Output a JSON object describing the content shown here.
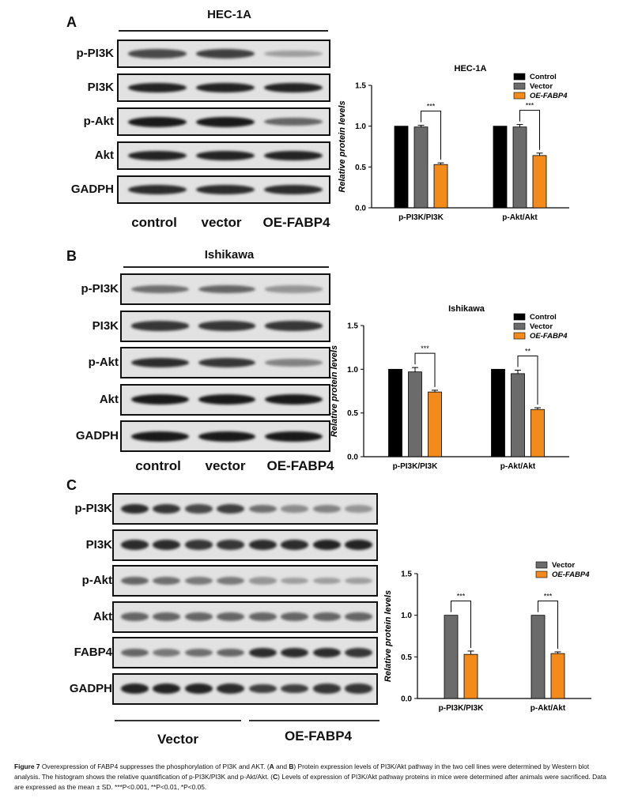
{
  "panel_a": {
    "letter": "A",
    "cell_line": "HEC-1A",
    "rows": [
      {
        "label": "p-PI3K",
        "intensity": [
          0.75,
          0.8,
          0.3
        ]
      },
      {
        "label": "PI3K",
        "intensity": [
          0.95,
          0.95,
          0.95
        ]
      },
      {
        "label": "p-Akt",
        "intensity": [
          1.0,
          1.0,
          0.6
        ]
      },
      {
        "label": "Akt",
        "intensity": [
          0.95,
          0.95,
          0.95
        ]
      },
      {
        "label": "GADPH",
        "intensity": [
          0.9,
          0.9,
          0.9
        ]
      }
    ],
    "lanes": [
      "control",
      "vector",
      "OE-FABP4"
    ]
  },
  "panel_b": {
    "letter": "B",
    "cell_line": "Ishikawa",
    "rows": [
      {
        "label": "p-PI3K",
        "intensity": [
          0.55,
          0.6,
          0.35
        ]
      },
      {
        "label": "PI3K",
        "intensity": [
          0.85,
          0.85,
          0.85
        ]
      },
      {
        "label": "p-Akt",
        "intensity": [
          0.9,
          0.85,
          0.45
        ]
      },
      {
        "label": "Akt",
        "intensity": [
          1.0,
          1.0,
          1.0
        ]
      },
      {
        "label": "GADPH",
        "intensity": [
          1.0,
          1.0,
          1.0
        ]
      }
    ],
    "lanes": [
      "control",
      "vector",
      "OE-FABP4"
    ]
  },
  "panel_c": {
    "letter": "C",
    "rows": [
      {
        "label": "p-PI3K",
        "intensity": [
          0.9,
          0.85,
          0.75,
          0.8,
          0.55,
          0.4,
          0.45,
          0.35
        ]
      },
      {
        "label": "PI3K",
        "intensity": [
          0.9,
          0.9,
          0.85,
          0.85,
          0.9,
          0.9,
          0.95,
          0.95
        ]
      },
      {
        "label": "p-Akt",
        "intensity": [
          0.6,
          0.55,
          0.5,
          0.5,
          0.35,
          0.3,
          0.3,
          0.3
        ]
      },
      {
        "label": "Akt",
        "intensity": [
          0.6,
          0.6,
          0.6,
          0.6,
          0.6,
          0.6,
          0.6,
          0.6
        ]
      },
      {
        "label": "FABP4",
        "intensity": [
          0.6,
          0.5,
          0.55,
          0.6,
          0.9,
          0.9,
          0.9,
          0.85
        ]
      },
      {
        "label": "GADPH",
        "intensity": [
          0.95,
          0.95,
          0.95,
          0.9,
          0.8,
          0.8,
          0.85,
          0.85
        ]
      }
    ],
    "group_labels": [
      "Vector",
      "OE-FABP4"
    ]
  },
  "chart_data": [
    {
      "type": "bar",
      "title": "HEC-1A",
      "ylabel": "Relative protein levels",
      "ylim": [
        0,
        1.5
      ],
      "yticks": [
        "0.0",
        "0.5",
        "1.0",
        "1.5"
      ],
      "categories": [
        "p-PI3K/PI3K",
        "p-Akt/Akt"
      ],
      "series": [
        {
          "name": "Control",
          "values": [
            1.0,
            1.0
          ],
          "errors": [
            0,
            0
          ],
          "color": "#000000"
        },
        {
          "name": "Vector",
          "values": [
            0.99,
            0.99
          ],
          "errors": [
            0.02,
            0.03
          ],
          "color": "#6b6b6b"
        },
        {
          "name": "OE-FABP4",
          "values": [
            0.53,
            0.64
          ],
          "errors": [
            0.02,
            0.03
          ],
          "color": "#f28a1c"
        }
      ],
      "significance": [
        "***",
        "***"
      ],
      "legend_position": "top-right"
    },
    {
      "type": "bar",
      "title": "Ishikawa",
      "ylabel": "Relative protein levels",
      "ylim": [
        0,
        1.5
      ],
      "yticks": [
        "0.0",
        "0.5",
        "1.0",
        "1.5"
      ],
      "categories": [
        "p-PI3K/PI3K",
        "p-Akt/Akt"
      ],
      "series": [
        {
          "name": "Control",
          "values": [
            1.0,
            1.0
          ],
          "errors": [
            0,
            0
          ],
          "color": "#000000"
        },
        {
          "name": "Vector",
          "values": [
            0.97,
            0.95
          ],
          "errors": [
            0.05,
            0.04
          ],
          "color": "#6b6b6b"
        },
        {
          "name": "OE-FABP4",
          "values": [
            0.74,
            0.54
          ],
          "errors": [
            0.02,
            0.02
          ],
          "color": "#f28a1c"
        }
      ],
      "significance": [
        "***",
        "**"
      ],
      "legend_position": "top-right"
    },
    {
      "type": "bar",
      "title": "",
      "ylabel": "Relative protein levels",
      "ylim": [
        0,
        1.5
      ],
      "yticks": [
        "0.0",
        "0.5",
        "1.0",
        "1.5"
      ],
      "categories": [
        "p-PI3K/PI3K",
        "p-Akt/Akt"
      ],
      "series": [
        {
          "name": "Vector",
          "values": [
            1.0,
            1.0
          ],
          "errors": [
            0,
            0
          ],
          "color": "#6b6b6b"
        },
        {
          "name": "OE-FABP4",
          "values": [
            0.53,
            0.54
          ],
          "errors": [
            0.04,
            0.02
          ],
          "color": "#f28a1c"
        }
      ],
      "significance": [
        "***",
        "***"
      ],
      "legend_position": "top-right"
    }
  ],
  "caption": {
    "label": "Figure 7",
    "text1": " Overexpression of FABP4 suppresses the phosphorylation of PI3K and AKT. (",
    "a": "A",
    "and": " and ",
    "b": "B",
    "text2": ") Protein expression levels of PI3K/Akt pathway in the two cell lines were determined by Western blot analysis. The histogram shows the relative quantification of p-PI3K/PI3K and p-Akt/Akt. (",
    "c": "C",
    "text3": ") Levels of expression of PI3K/Akt pathway proteins in mice were determined after animals were sacrificed. Data are expressed as the mean ± SD. ***P<0.001, **P<0.01, *P<0.05."
  }
}
